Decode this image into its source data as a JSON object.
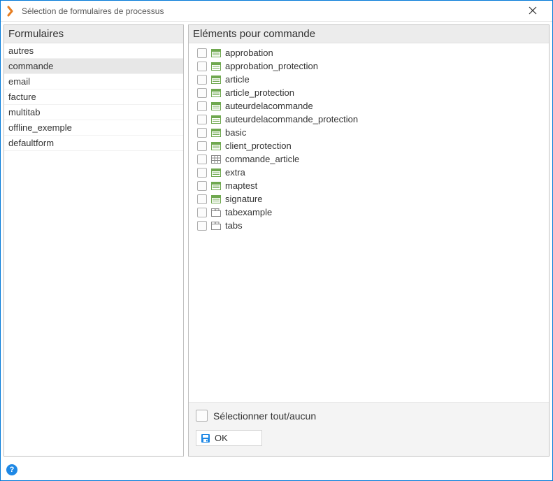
{
  "window": {
    "title": "Sélection de formulaires de processus"
  },
  "leftPanel": {
    "header": "Formulaires",
    "items": [
      {
        "label": "autres",
        "selected": false
      },
      {
        "label": "commande",
        "selected": true
      },
      {
        "label": "email",
        "selected": false
      },
      {
        "label": "facture",
        "selected": false
      },
      {
        "label": "multitab",
        "selected": false
      },
      {
        "label": "offline_exemple",
        "selected": false
      },
      {
        "label": "defaultform",
        "selected": false
      }
    ]
  },
  "rightPanel": {
    "header": "Eléments pour commande",
    "items": [
      {
        "label": "approbation",
        "icon": "form"
      },
      {
        "label": "approbation_protection",
        "icon": "form"
      },
      {
        "label": "article",
        "icon": "form"
      },
      {
        "label": "article_protection",
        "icon": "form"
      },
      {
        "label": "auteurdelacommande",
        "icon": "form"
      },
      {
        "label": "auteurdelacommande_protection",
        "icon": "form"
      },
      {
        "label": "basic",
        "icon": "form"
      },
      {
        "label": "client_protection",
        "icon": "form"
      },
      {
        "label": "commande_article",
        "icon": "grid"
      },
      {
        "label": "extra",
        "icon": "form"
      },
      {
        "label": "maptest",
        "icon": "form"
      },
      {
        "label": "signature",
        "icon": "form"
      },
      {
        "label": "tabexample",
        "icon": "tab"
      },
      {
        "label": "tabs",
        "icon": "tab"
      }
    ],
    "selectAllLabel": "Sélectionner tout/aucun",
    "okLabel": "OK"
  },
  "icons": {
    "form": {
      "border": "#6fa84f",
      "accent": "#6fa84f",
      "bg": "#ffffff"
    },
    "grid": {
      "border": "#888888",
      "bg": "#ffffff"
    },
    "tab": {
      "border": "#888888",
      "bg": "#ffffff"
    },
    "save": {
      "fill": "#1e88e5",
      "bg": "#ffffff"
    }
  }
}
